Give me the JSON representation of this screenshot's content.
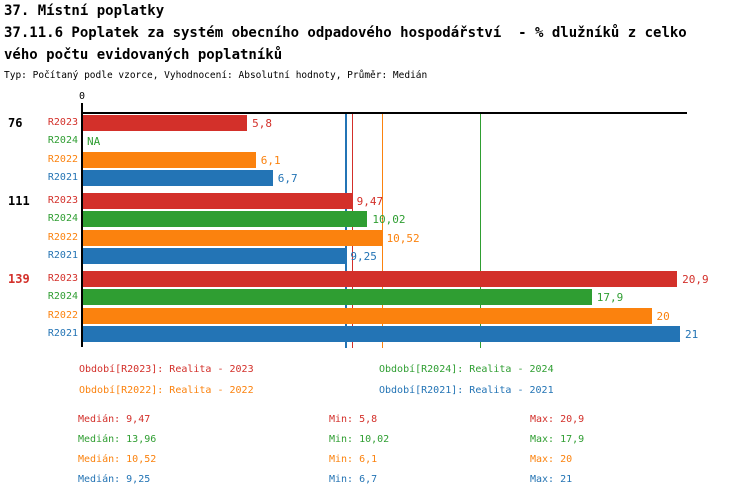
{
  "header": {
    "title": "37. Místní poplatky",
    "subtitle_line1": "37.11.6 Poplatek za systém obecního odpadového hospodářství  - % dlužníků z celko",
    "subtitle_line2": "vého počtu evidovaných poplatníků",
    "meta": "Typ: Počítaný podle vzorce, Vyhodnocení: Absolutní hodnoty, Průměr: Medián"
  },
  "colors": {
    "R2023": "#d3302a",
    "R2024": "#2f9e32",
    "R2022": "#fb820e",
    "R2021": "#2374b5",
    "axis": "#000000",
    "highlight_group": "#d3302a",
    "normal_group": "#000000"
  },
  "chart_data": {
    "type": "bar",
    "orientation": "horizontal",
    "title": "37.11.6 Poplatek za systém obecního odpadového hospodářství - % dlužníků z celkového počtu evidovaných poplatníků",
    "xlabel": "",
    "ylabel": "",
    "xlim": [
      0,
      21.2
    ],
    "zero_tick_label": "0",
    "grid": false,
    "series_order": [
      "R2023",
      "R2024",
      "R2022",
      "R2021"
    ],
    "groups": [
      {
        "label": "76",
        "highlighted": false,
        "bars": [
          {
            "series": "R2023",
            "value": 5.8,
            "display": "5,8"
          },
          {
            "series": "R2024",
            "value": null,
            "display": "NA"
          },
          {
            "series": "R2022",
            "value": 6.1,
            "display": "6,1"
          },
          {
            "series": "R2021",
            "value": 6.7,
            "display": "6,7"
          }
        ]
      },
      {
        "label": "111",
        "highlighted": false,
        "bars": [
          {
            "series": "R2023",
            "value": 9.47,
            "display": "9,47"
          },
          {
            "series": "R2024",
            "value": 10.02,
            "display": "10,02"
          },
          {
            "series": "R2022",
            "value": 10.52,
            "display": "10,52"
          },
          {
            "series": "R2021",
            "value": 9.25,
            "display": "9,25"
          }
        ]
      },
      {
        "label": "139",
        "highlighted": true,
        "bars": [
          {
            "series": "R2023",
            "value": 20.9,
            "display": "20,9"
          },
          {
            "series": "R2024",
            "value": 17.9,
            "display": "17,9"
          },
          {
            "series": "R2022",
            "value": 20,
            "display": "20"
          },
          {
            "series": "R2021",
            "value": 21,
            "display": "21"
          }
        ]
      }
    ],
    "median_lines": [
      {
        "series": "R2023",
        "value": 9.47
      },
      {
        "series": "R2024",
        "value": 13.96
      },
      {
        "series": "R2022",
        "value": 10.52
      },
      {
        "series": "R2021",
        "value": 9.25
      }
    ]
  },
  "legend": {
    "items": [
      {
        "series": "R2023",
        "text": "Období[R2023]: Realita - 2023"
      },
      {
        "series": "R2024",
        "text": "Období[R2024]: Realita - 2024"
      },
      {
        "series": "R2022",
        "text": "Období[R2022]: Realita - 2022"
      },
      {
        "series": "R2021",
        "text": "Období[R2021]: Realita - 2021"
      }
    ]
  },
  "stats": {
    "labels": {
      "median": "Medián:",
      "min": "Min:",
      "max": "Max:"
    },
    "rows": [
      {
        "series": "R2023",
        "median": "9,47",
        "min": "5,8",
        "max": "20,9"
      },
      {
        "series": "R2024",
        "median": "13,96",
        "min": "10,02",
        "max": "17,9"
      },
      {
        "series": "R2022",
        "median": "10,52",
        "min": "6,1",
        "max": "20"
      },
      {
        "series": "R2021",
        "median": "9,25",
        "min": "6,7",
        "max": "21"
      }
    ]
  }
}
